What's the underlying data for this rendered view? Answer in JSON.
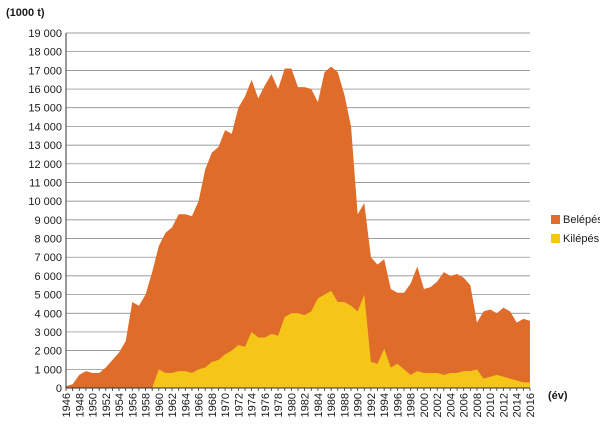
{
  "chart_data": {
    "type": "area",
    "y_unit_label": "(1000 t)",
    "x_unit_label": "(év)",
    "ylim": [
      0,
      19000
    ],
    "y_ticks": [
      0,
      1000,
      2000,
      3000,
      4000,
      5000,
      6000,
      7000,
      8000,
      9000,
      10000,
      11000,
      12000,
      13000,
      14000,
      15000,
      16000,
      17000,
      18000,
      19000
    ],
    "y_tick_labels": [
      "0",
      "1 000",
      "2 000",
      "3 000",
      "4 000",
      "5 000",
      "6 000",
      "7 000",
      "8 000",
      "9 000",
      "10 000",
      "11 000",
      "12 000",
      "13 000",
      "14 000",
      "15 000",
      "16 000",
      "17 000",
      "18 000",
      "19 000"
    ],
    "x_ticks": [
      1946,
      1948,
      1950,
      1952,
      1954,
      1956,
      1958,
      1960,
      1962,
      1964,
      1966,
      1968,
      1970,
      1972,
      1974,
      1976,
      1978,
      1980,
      1982,
      1984,
      1986,
      1988,
      1990,
      1992,
      1994,
      1996,
      1998,
      2000,
      2002,
      2004,
      2006,
      2008,
      2010,
      2012,
      2014,
      2016
    ],
    "grid": true,
    "legend_position": "right",
    "x": [
      1946,
      1947,
      1948,
      1949,
      1950,
      1951,
      1952,
      1953,
      1954,
      1955,
      1956,
      1957,
      1958,
      1959,
      1960,
      1961,
      1962,
      1963,
      1964,
      1965,
      1966,
      1967,
      1968,
      1969,
      1970,
      1971,
      1972,
      1973,
      1974,
      1975,
      1976,
      1977,
      1978,
      1979,
      1980,
      1981,
      1982,
      1983,
      1984,
      1985,
      1986,
      1987,
      1988,
      1989,
      1990,
      1991,
      1992,
      1993,
      1994,
      1995,
      1996,
      1997,
      1998,
      1999,
      2000,
      2001,
      2002,
      2003,
      2004,
      2005,
      2006,
      2007,
      2008,
      2009,
      2010,
      2011,
      2012,
      2013,
      2014,
      2015,
      2016
    ],
    "series": [
      {
        "name": "Belépés",
        "color": "#e06c2a",
        "values": [
          100,
          200,
          700,
          900,
          800,
          800,
          1100,
          1500,
          1900,
          2500,
          4600,
          4400,
          5000,
          6200,
          7600,
          8300,
          8600,
          9300,
          9300,
          9200,
          10000,
          11700,
          12600,
          12900,
          13800,
          13600,
          15000,
          15600,
          16500,
          15500,
          16200,
          16800,
          16000,
          17100,
          17100,
          16100,
          16100,
          16000,
          15300,
          16900,
          17200,
          16900,
          15700,
          14000,
          9300,
          9900,
          7000,
          6600,
          6900,
          5300,
          5100,
          5100,
          5600,
          6500,
          5300,
          5400,
          5700,
          6200,
          6000,
          6100,
          5900,
          5500,
          3500,
          4100,
          4200,
          4000,
          4300,
          4100,
          3500,
          3700,
          3600
        ]
      },
      {
        "name": "Kilépés",
        "color": "#f5c518",
        "values": [
          0,
          0,
          0,
          0,
          0,
          0,
          0,
          0,
          0,
          0,
          0,
          0,
          0,
          0,
          1000,
          800,
          800,
          900,
          900,
          800,
          1000,
          1100,
          1400,
          1500,
          1800,
          2000,
          2300,
          2200,
          3000,
          2700,
          2700,
          2900,
          2800,
          3800,
          4000,
          4000,
          3900,
          4100,
          4800,
          5000,
          5200,
          4600,
          4600,
          4400,
          4100,
          5000,
          1400,
          1300,
          2100,
          1100,
          1300,
          1000,
          700,
          900,
          800,
          800,
          800,
          700,
          800,
          800,
          900,
          900,
          1000,
          500,
          600,
          700,
          600,
          500,
          400,
          300,
          300
        ]
      }
    ]
  }
}
